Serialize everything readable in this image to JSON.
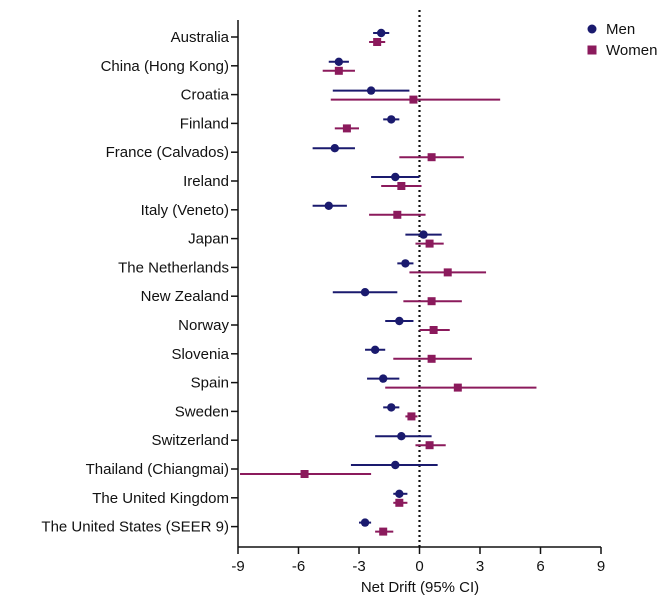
{
  "chart_data": {
    "type": "scatter",
    "categories": [
      "Australia",
      "China (Hong Kong)",
      "Croatia",
      "Finland",
      "France (Calvados)",
      "Ireland",
      "Italy (Veneto)",
      "Japan",
      "The Netherlands",
      "New Zealand",
      "Norway",
      "Slovenia",
      "Spain",
      "Sweden",
      "Switzerland",
      "Thailand (Chiangmai)",
      "The United Kingdom",
      "The United States (SEER 9)"
    ],
    "series": [
      {
        "name": "Men",
        "color": "#1a1a6e",
        "marker": "circle",
        "values": [
          -1.9,
          -4.0,
          -2.4,
          -1.4,
          -4.2,
          -1.2,
          -4.5,
          0.2,
          -0.7,
          -2.7,
          -1.0,
          -2.2,
          -1.8,
          -1.4,
          -0.9,
          -1.2,
          -1.0,
          -2.7
        ],
        "ci_low": [
          -2.3,
          -4.5,
          -4.3,
          -1.8,
          -5.3,
          -2.4,
          -5.3,
          -0.7,
          -1.1,
          -4.3,
          -1.7,
          -2.7,
          -2.6,
          -1.8,
          -2.2,
          -3.4,
          -1.3,
          -3.0
        ],
        "ci_high": [
          -1.5,
          -3.5,
          -0.5,
          -1.0,
          -3.2,
          0.0,
          -3.6,
          1.1,
          -0.3,
          -1.1,
          -0.3,
          -1.7,
          -1.0,
          -1.0,
          0.6,
          0.9,
          -0.6,
          -2.4
        ]
      },
      {
        "name": "Women",
        "color": "#8b1a5c",
        "marker": "square",
        "values": [
          -2.1,
          -4.0,
          -0.3,
          -3.6,
          0.6,
          -0.9,
          -1.1,
          0.5,
          1.4,
          0.6,
          0.7,
          0.6,
          1.9,
          -0.4,
          0.5,
          -5.7,
          -1.0,
          -1.8
        ],
        "ci_low": [
          -2.5,
          -4.8,
          -4.4,
          -4.2,
          -1.0,
          -1.9,
          -2.5,
          -0.2,
          -0.5,
          -0.8,
          0.0,
          -1.3,
          -1.7,
          -0.7,
          -0.2,
          -8.9,
          -1.3,
          -2.2
        ],
        "ci_high": [
          -1.7,
          -3.2,
          4.0,
          -3.0,
          2.2,
          0.1,
          0.3,
          1.2,
          3.3,
          2.1,
          1.5,
          2.6,
          5.8,
          -0.1,
          1.3,
          -2.4,
          -0.6,
          -1.3
        ]
      }
    ],
    "xlabel": "Net Drift (95% CI)",
    "xlim": [
      -9,
      9
    ],
    "xticks": [
      "-9",
      "-6",
      "-3",
      "0",
      "3",
      "6",
      "9"
    ],
    "reference_line": 0,
    "legend": "top-right",
    "grid": false
  }
}
